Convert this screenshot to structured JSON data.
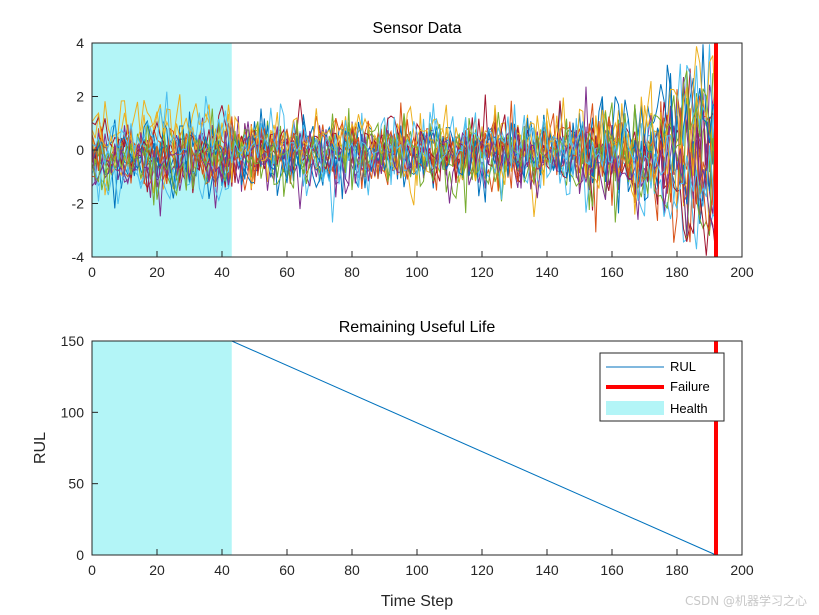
{
  "watermark": "CSDN @机器学习之心",
  "chart_data": [
    {
      "type": "line",
      "title": "Sensor Data",
      "xlabel": "",
      "ylabel": "",
      "xlim": [
        0,
        200
      ],
      "ylim": [
        -4,
        4
      ],
      "xticks": [
        0,
        20,
        40,
        60,
        80,
        100,
        120,
        140,
        160,
        180,
        200
      ],
      "yticks": [
        -4,
        -2,
        0,
        2,
        4
      ],
      "health_region": [
        0,
        43
      ],
      "failure_x": 192,
      "n_series": 20,
      "series_colors": [
        "#0072BD",
        "#D95319",
        "#EDB120",
        "#7E2F8E",
        "#77AC30",
        "#4DBEEE",
        "#A2142F"
      ],
      "noise_envelope": {
        "x": [
          0,
          43,
          100,
          140,
          170,
          192
        ],
        "spread": [
          1.2,
          1.3,
          1.4,
          1.5,
          2.1,
          3.0
        ]
      }
    },
    {
      "type": "line",
      "title": "Remaining Useful Life",
      "xlabel": "Time Step",
      "ylabel": "RUL",
      "xlim": [
        0,
        200
      ],
      "ylim": [
        0,
        150
      ],
      "xticks": [
        0,
        20,
        40,
        60,
        80,
        100,
        120,
        140,
        160,
        180,
        200
      ],
      "yticks": [
        0,
        50,
        100,
        150
      ],
      "health_region": [
        0,
        43
      ],
      "failure_x": 192,
      "series": [
        {
          "name": "RUL",
          "x": [
            0,
            43,
            192
          ],
          "values": [
            150,
            150,
            0
          ],
          "color": "#0072BD"
        }
      ],
      "legend": [
        {
          "label": "RUL",
          "kind": "line",
          "color": "#0072BD"
        },
        {
          "label": "Failure",
          "kind": "thick-line",
          "color": "#FF0000"
        },
        {
          "label": "Health",
          "kind": "patch",
          "color": "#B3F5F7"
        }
      ],
      "legend_position": "top-right"
    }
  ]
}
